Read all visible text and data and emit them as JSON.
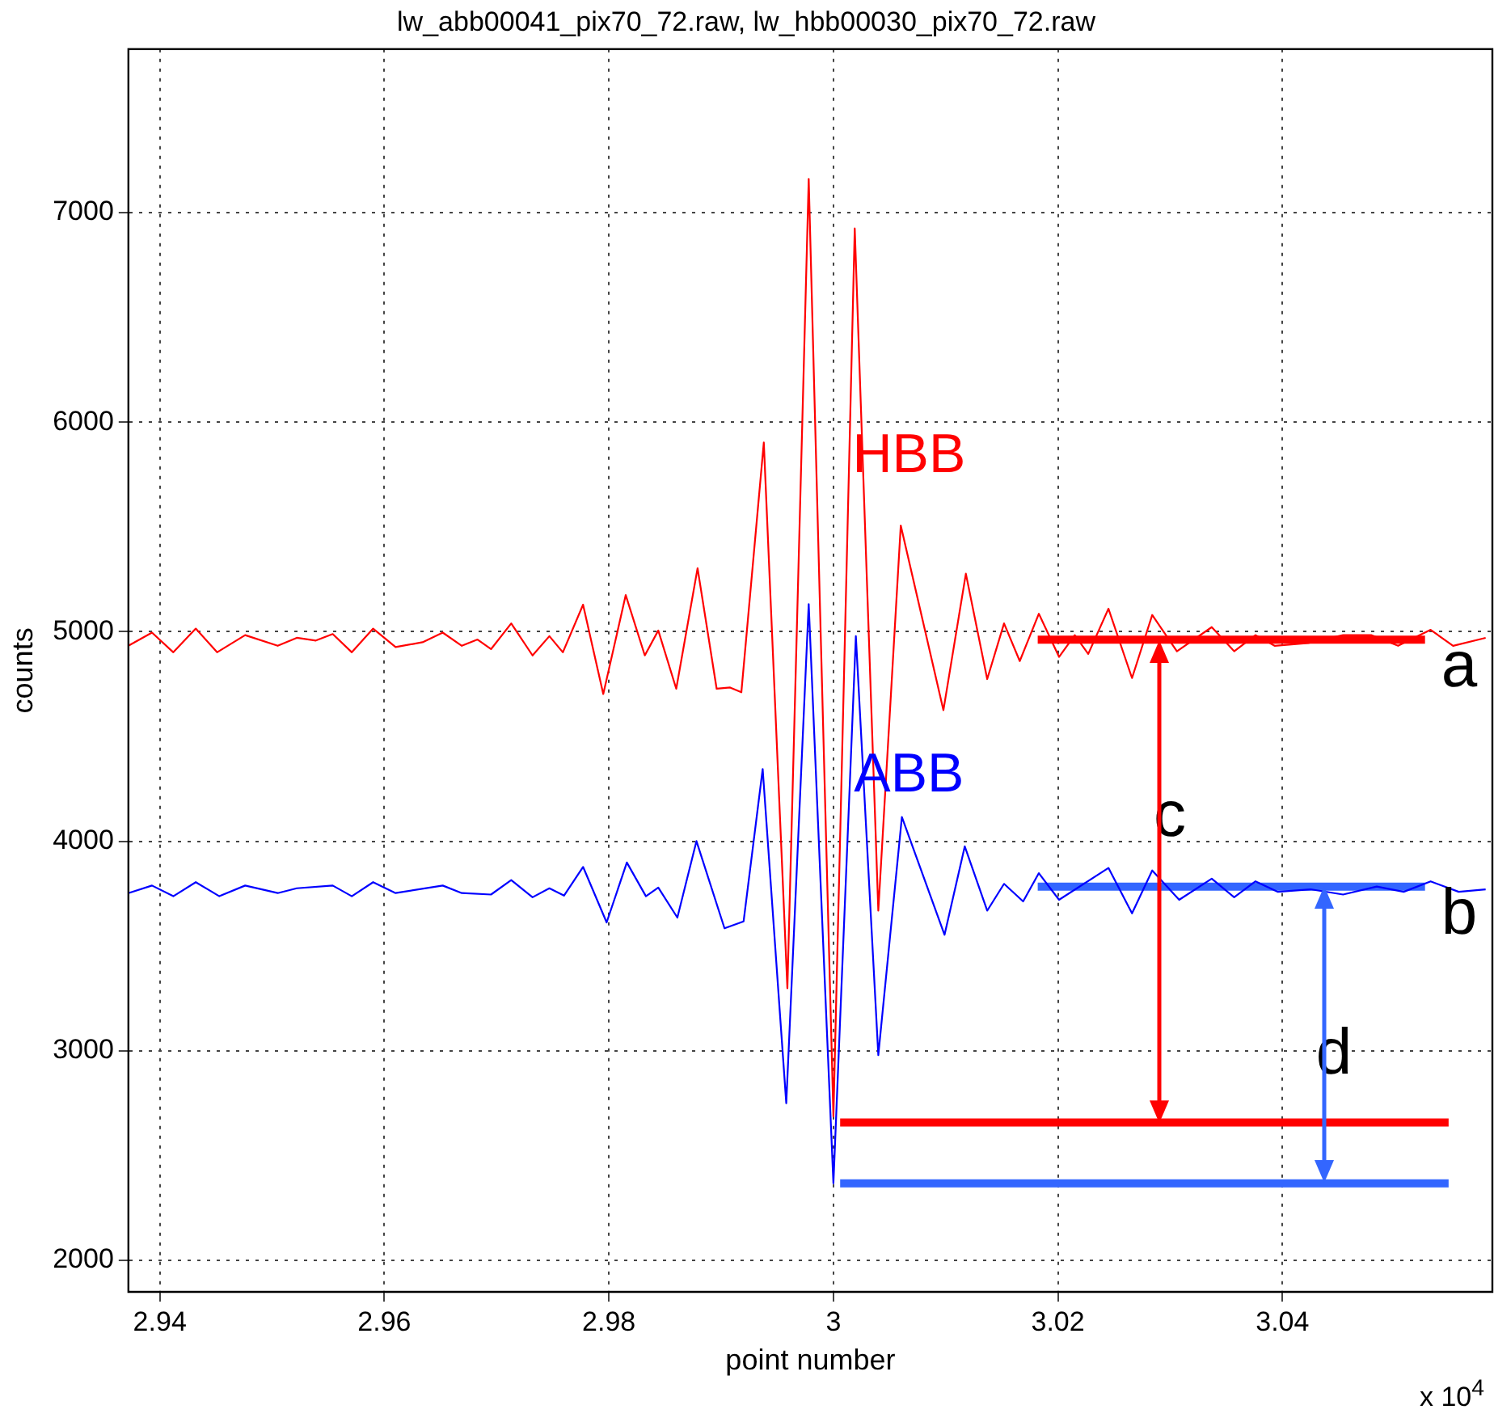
{
  "chart_data": {
    "type": "line",
    "title": "lw_abb00041_pix70_72.raw, lw_hbb00030_pix70_72.raw",
    "xlabel": "point number",
    "ylabel": "counts",
    "xlim": [
      2.9372,
      3.0587
    ],
    "ylim": [
      1850,
      7780
    ],
    "xticks": [
      2.94,
      2.96,
      2.98,
      3,
      3.02,
      3.04
    ],
    "yticks": [
      2000,
      3000,
      4000,
      5000,
      6000,
      7000
    ],
    "grid": true,
    "marker": "none",
    "annotations": [
      "a",
      "b",
      "c",
      "d",
      "x 10$^{4}$"
    ],
    "series": [
      {
        "name": "HBB",
        "color": "#ff0000",
        "x": [
          2.9372,
          2.9393,
          2.9412,
          2.9432,
          2.9451,
          2.9476,
          2.9505,
          2.9522,
          2.9539,
          2.9554,
          2.9571,
          2.959,
          2.961,
          2.9634,
          2.9652,
          2.9669,
          2.9683,
          2.9695,
          2.9713,
          2.9732,
          2.9747,
          2.9759,
          2.9777,
          2.9795,
          2.9815,
          2.9832,
          2.9844,
          2.986,
          2.9879,
          2.9896,
          2.9908,
          2.9918,
          2.9938,
          2.9959,
          2.9978,
          3,
          3.0019,
          3.004,
          3.006,
          3.0098,
          3.0118,
          3.0137,
          3.0152,
          3.0166,
          3.0183,
          3.0201,
          3.0215,
          3.0227,
          3.0245,
          3.0266,
          3.0284,
          3.0306,
          3.0337,
          3.0357,
          3.0376,
          3.0393,
          3.0423,
          3.0454,
          3.0479,
          3.0503,
          3.0532,
          3.0552,
          3.0581
        ],
        "values": [
          4933,
          4996,
          4902,
          5015,
          4902,
          4984,
          4933,
          4971,
          4958,
          4989,
          4902,
          5015,
          4927,
          4950,
          4996,
          4933,
          4963,
          4917,
          5040,
          4887,
          4979,
          4902,
          5129,
          4703,
          5175,
          4887,
          5006,
          4728,
          5303,
          4728,
          4734,
          4711,
          5903,
          3299,
          7161,
          2687,
          6924,
          3669,
          5507,
          4626,
          5277,
          4774,
          5040,
          4860,
          5086,
          4880,
          4984,
          4894,
          5110,
          4779,
          5080,
          4907,
          5022,
          4907,
          4984,
          4933,
          4946,
          4984,
          4984,
          4933,
          5009,
          4933,
          4971
        ]
      },
      {
        "name": "ABB",
        "color": "#0000ff",
        "x": [
          2.9372,
          2.9393,
          2.9412,
          2.9432,
          2.9453,
          2.9476,
          2.9505,
          2.9522,
          2.9554,
          2.9571,
          2.959,
          2.961,
          2.9652,
          2.9669,
          2.9695,
          2.9713,
          2.9732,
          2.9747,
          2.976,
          2.9777,
          2.9798,
          2.9816,
          2.9833,
          2.9844,
          2.9861,
          2.9878,
          2.9903,
          2.992,
          2.9937,
          2.9958,
          2.9978,
          3,
          3.002,
          3.004,
          3.0061,
          3.0099,
          3.0117,
          3.0137,
          3.0152,
          3.0169,
          3.0183,
          3.0201,
          3.0245,
          3.0266,
          3.0284,
          3.0308,
          3.0337,
          3.0357,
          3.0376,
          3.0396,
          3.0425,
          3.0454,
          3.0484,
          3.0508,
          3.0532,
          3.0557,
          3.0581
        ],
        "values": [
          3753,
          3789,
          3738,
          3805,
          3738,
          3789,
          3753,
          3776,
          3789,
          3738,
          3805,
          3753,
          3789,
          3753,
          3746,
          3815,
          3733,
          3776,
          3741,
          3878,
          3613,
          3899,
          3738,
          3779,
          3636,
          4001,
          3585,
          3618,
          4345,
          2750,
          5132,
          2368,
          4979,
          2980,
          4116,
          3554,
          3976,
          3669,
          3797,
          3713,
          3848,
          3721,
          3873,
          3656,
          3861,
          3721,
          3822,
          3733,
          3809,
          3759,
          3771,
          3746,
          3784,
          3759,
          3809,
          3759,
          3771
        ]
      },
      {
        "color": "#ff0000",
        "x": [
          3.0182,
          3.0527
        ],
        "values": [
          4962,
          4962
        ]
      },
      {
        "color": "#3366ff",
        "x": [
          3.0182,
          3.0527
        ],
        "values": [
          3784,
          3784
        ]
      },
      {
        "color": "#ff0000",
        "x": [
          3.0006,
          3.0548
        ],
        "values": [
          2658,
          2658
        ]
      },
      {
        "color": "#3366ff",
        "x": [
          3.0006,
          3.0548
        ],
        "values": [
          2368,
          2368
        ]
      }
    ]
  }
}
